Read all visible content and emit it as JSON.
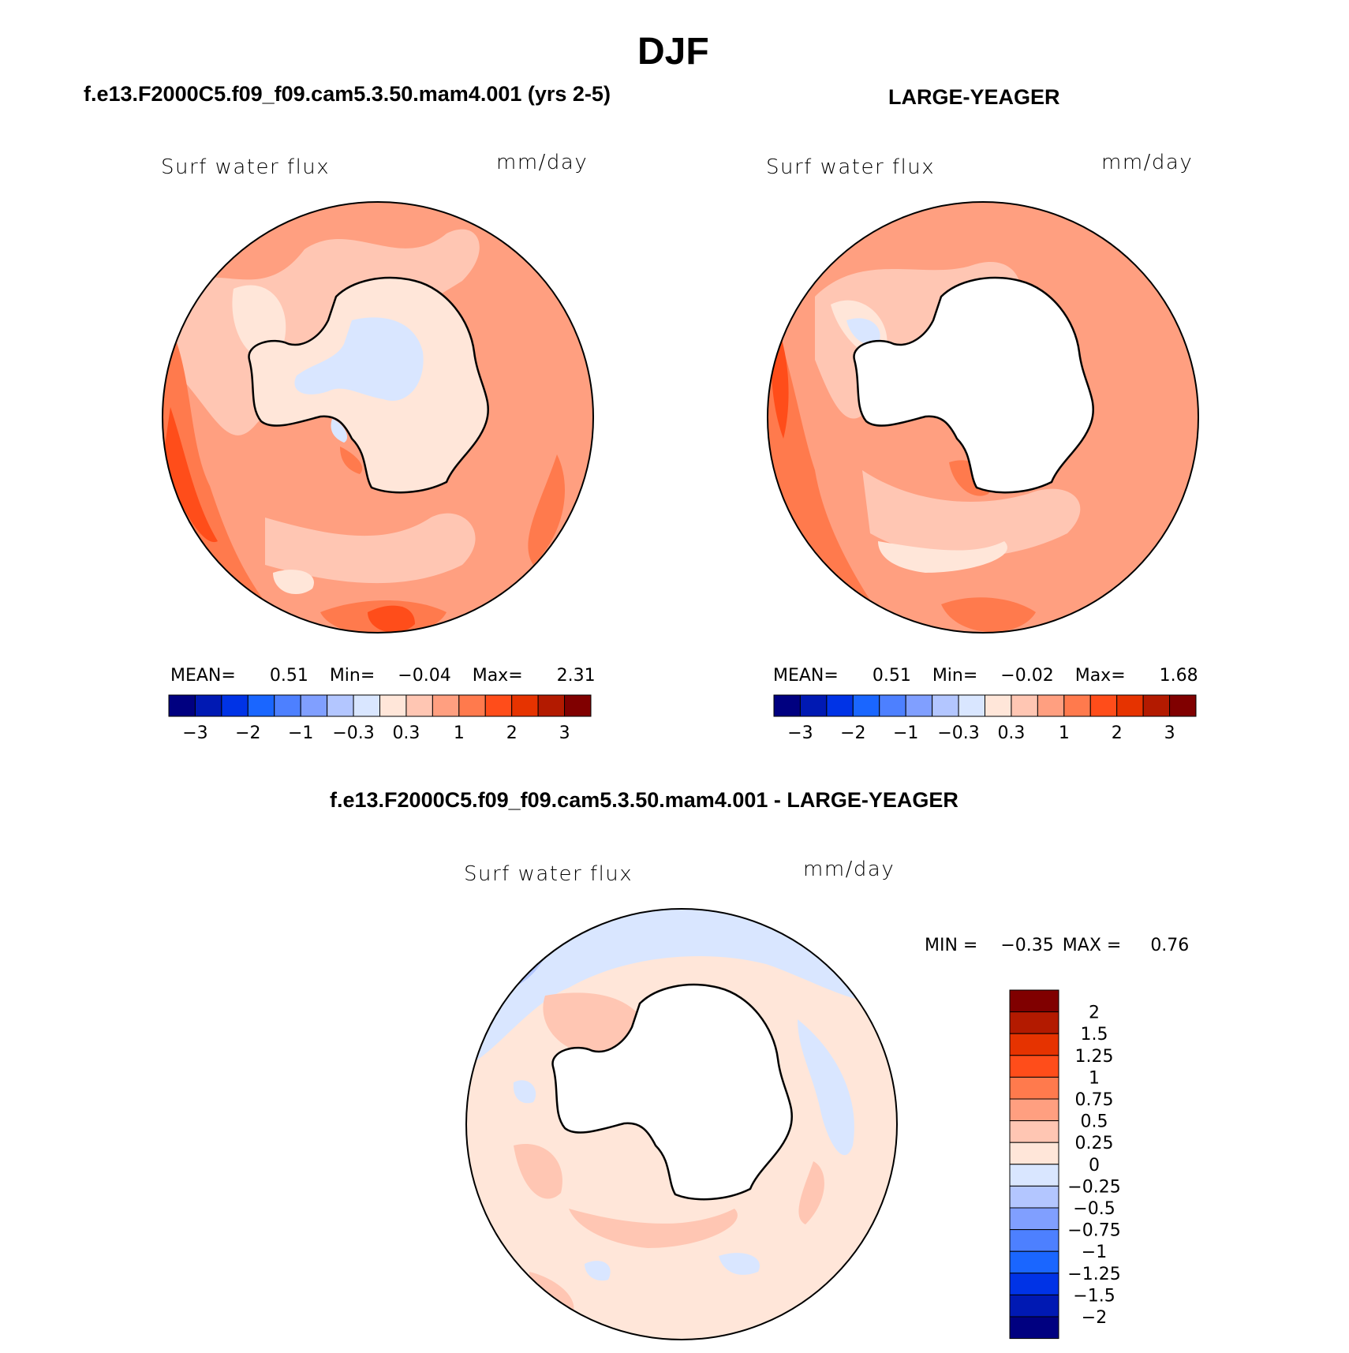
{
  "title": "DJF",
  "panels": [
    {
      "case_title": "f.e13.F2000C5.f09_f09.cam5.3.50.mam4.001 (yrs 2-5)",
      "variable": "Surf water flux",
      "units": "mm/day",
      "stats": {
        "mean_label": "MEAN=",
        "mean": "0.51",
        "min_label": "Min=",
        "min": "−0.04",
        "max_label": "Max=",
        "max": "2.31"
      },
      "colorbar": {
        "labels": [
          "−3",
          "−2",
          "−1",
          "−0.3",
          "0.3",
          "1",
          "2",
          "3"
        ],
        "colors": [
          "#000080",
          "#0019b3",
          "#0033e6",
          "#1a66ff",
          "#4d80ff",
          "#809fff",
          "#b3c6ff",
          "#d9e6ff",
          "#ffe6d9",
          "#ffc6b3",
          "#ff9f80",
          "#ff7a4d",
          "#ff4d1a",
          "#e63300",
          "#b31a00",
          "#800000"
        ]
      },
      "ocean_level": "0.3 to 1",
      "land_level": "0 to 0.3"
    },
    {
      "case_title": "LARGE-YEAGER",
      "variable": "Surf water flux",
      "units": "mm/day",
      "stats": {
        "mean_label": "MEAN=",
        "mean": "0.51",
        "min_label": "Min=",
        "min": "−0.02",
        "max_label": "Max=",
        "max": "1.68"
      },
      "colorbar": {
        "labels": [
          "−3",
          "−2",
          "−1",
          "−0.3",
          "0.3",
          "1",
          "2",
          "3"
        ],
        "colors": [
          "#000080",
          "#0019b3",
          "#0033e6",
          "#1a66ff",
          "#4d80ff",
          "#809fff",
          "#b3c6ff",
          "#d9e6ff",
          "#ffe6d9",
          "#ffc6b3",
          "#ff9f80",
          "#ff7a4d",
          "#ff4d1a",
          "#e63300",
          "#b31a00",
          "#800000"
        ]
      },
      "ocean_level": "0.3 to 1",
      "land_level": "missing"
    },
    {
      "case_title": "f.e13.F2000C5.f09_f09.cam5.3.50.mam4.001 - LARGE-YEAGER",
      "variable": "Surf water flux",
      "units": "mm/day",
      "stats": {
        "min_label": "MIN =",
        "min": "−0.35",
        "max_label": "MAX =",
        "max": "0.76"
      },
      "colorbar": {
        "labels": [
          "2",
          "1.5",
          "1.25",
          "1",
          "0.75",
          "0.5",
          "0.25",
          "0",
          "−0.25",
          "−0.5",
          "−0.75",
          "−1",
          "−1.25",
          "−1.5",
          "−2"
        ],
        "colors": [
          "#800000",
          "#b31a00",
          "#e63300",
          "#ff4d1a",
          "#ff7a4d",
          "#ff9f80",
          "#ffc6b3",
          "#ffe6d9",
          "#d9e6ff",
          "#b3c6ff",
          "#809fff",
          "#4d80ff",
          "#1a66ff",
          "#0033e6",
          "#0019b3",
          "#000080"
        ]
      },
      "ocean_level": "0 to 0.25",
      "land_level": "missing"
    }
  ]
}
